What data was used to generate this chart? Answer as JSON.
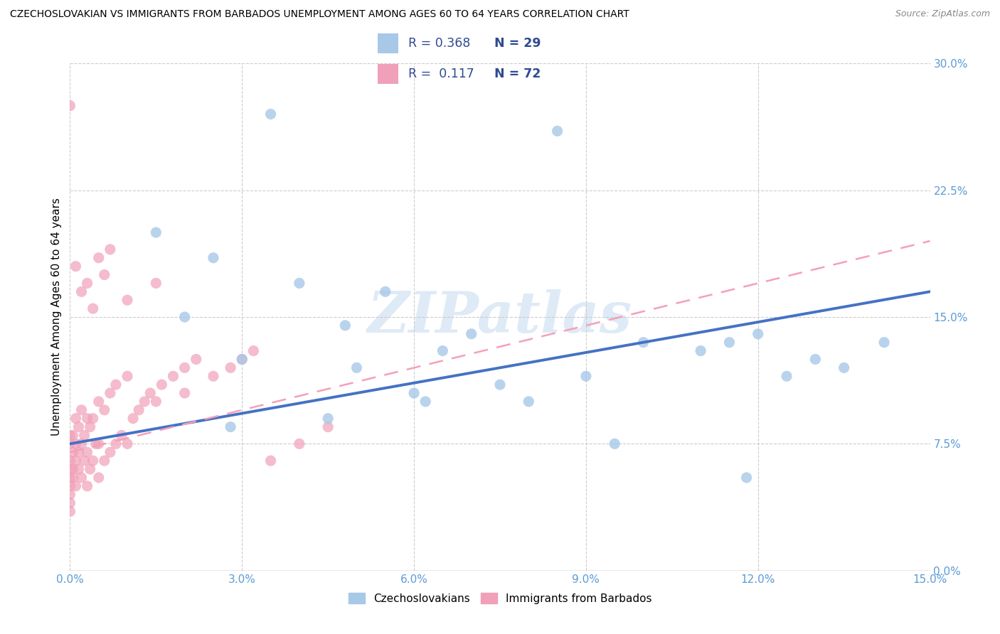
{
  "title": "CZECHOSLOVAKIAN VS IMMIGRANTS FROM BARBADOS UNEMPLOYMENT AMONG AGES 60 TO 64 YEARS CORRELATION CHART",
  "source": "Source: ZipAtlas.com",
  "ylabel": "Unemployment Among Ages 60 to 64 years",
  "xmin": 0.0,
  "xmax": 15.0,
  "ymin": 0.0,
  "ymax": 30.0,
  "color_blue": "#A8C8E8",
  "color_pink": "#F0A0B8",
  "color_blue_line": "#4472C4",
  "color_pink_line": "#F4A0B8",
  "color_axis_text": "#5B9BD5",
  "watermark_text": "ZIPatlas",
  "legend_text_color": "#2E4B8F",
  "czecho_x": [
    3.5,
    8.5,
    11.5,
    1.5,
    2.5,
    4.0,
    2.0,
    5.5,
    3.0,
    4.8,
    7.0,
    6.5,
    5.0,
    9.0,
    7.5,
    11.0,
    12.5,
    13.5,
    14.2,
    6.0,
    8.0,
    10.0,
    12.0,
    13.0,
    2.8,
    4.5,
    6.2,
    9.5,
    11.8
  ],
  "czecho_y": [
    27.0,
    26.0,
    13.5,
    20.0,
    18.5,
    17.0,
    15.0,
    16.5,
    12.5,
    14.5,
    14.0,
    13.0,
    12.0,
    11.5,
    11.0,
    13.0,
    11.5,
    12.0,
    13.5,
    10.5,
    10.0,
    13.5,
    14.0,
    12.5,
    8.5,
    9.0,
    10.0,
    7.5,
    5.5
  ],
  "barbados_x": [
    0.0,
    0.0,
    0.0,
    0.0,
    0.0,
    0.0,
    0.0,
    0.0,
    0.0,
    0.0,
    0.05,
    0.05,
    0.05,
    0.05,
    0.1,
    0.1,
    0.1,
    0.1,
    0.15,
    0.15,
    0.15,
    0.2,
    0.2,
    0.2,
    0.25,
    0.25,
    0.3,
    0.3,
    0.3,
    0.35,
    0.35,
    0.4,
    0.4,
    0.45,
    0.5,
    0.5,
    0.5,
    0.6,
    0.6,
    0.7,
    0.7,
    0.8,
    0.8,
    0.9,
    1.0,
    1.0,
    1.1,
    1.2,
    1.3,
    1.4,
    1.5,
    1.6,
    1.8,
    2.0,
    2.0,
    2.2,
    2.5,
    2.8,
    3.0,
    3.2,
    3.5,
    4.0,
    4.5,
    0.1,
    0.2,
    0.3,
    0.4,
    0.5,
    0.6,
    0.7,
    1.0,
    1.5
  ],
  "barbados_y": [
    27.5,
    8.0,
    7.5,
    6.5,
    6.0,
    5.5,
    5.0,
    4.5,
    4.0,
    3.5,
    5.5,
    6.0,
    7.0,
    8.0,
    5.0,
    6.5,
    7.5,
    9.0,
    6.0,
    7.0,
    8.5,
    5.5,
    7.5,
    9.5,
    6.5,
    8.0,
    5.0,
    7.0,
    9.0,
    6.0,
    8.5,
    6.5,
    9.0,
    7.5,
    5.5,
    7.5,
    10.0,
    6.5,
    9.5,
    7.0,
    10.5,
    7.5,
    11.0,
    8.0,
    7.5,
    11.5,
    9.0,
    9.5,
    10.0,
    10.5,
    10.0,
    11.0,
    11.5,
    10.5,
    12.0,
    12.5,
    11.5,
    12.0,
    12.5,
    13.0,
    6.5,
    7.5,
    8.5,
    18.0,
    16.5,
    17.0,
    15.5,
    18.5,
    17.5,
    19.0,
    16.0,
    17.0
  ]
}
